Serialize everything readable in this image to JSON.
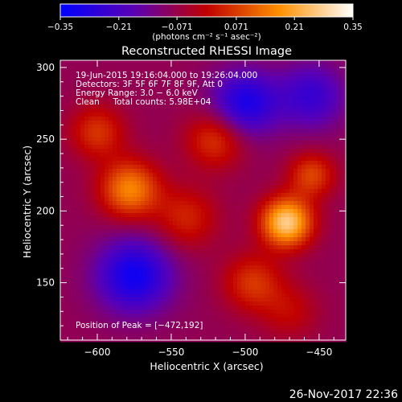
{
  "chart_data": {
    "type": "heatmap",
    "title": "Reconstructed RHESSI Image",
    "xlabel": "Heliocentric X (arcsec)",
    "ylabel": "Heliocentric Y (arcsec)",
    "x_range": [
      -625,
      -432
    ],
    "y_range": [
      110,
      305
    ],
    "x_ticks": [
      -600,
      -550,
      -500,
      -450
    ],
    "y_ticks": [
      150,
      200,
      250,
      300
    ],
    "x_tick_labels": [
      "−600",
      "−550",
      "−500",
      "−450"
    ],
    "y_tick_labels": [
      "150",
      "200",
      "250",
      "300"
    ],
    "colorbar": {
      "range": [
        -0.35,
        0.35
      ],
      "ticks": [
        -0.35,
        -0.21,
        -0.071,
        0.071,
        0.21,
        0.35
      ],
      "tick_labels": [
        "−0.35",
        "−0.21",
        "−0.071",
        "0.071",
        "0.21",
        "0.35"
      ],
      "unit_label": "(photons cm⁻² s⁻¹ asec⁻²)"
    },
    "annotations": [
      "19-Jun-2015 19:16:04.000 to 19:26:04.000",
      "Detectors: 3F 5F 6F 7F 8F 9F, Att 0",
      "Energy Range: 3.0 − 6.0 keV",
      "Clean     Total counts: 5.98E+04"
    ],
    "peak_label": "Position of Peak = [−472,192]",
    "peak": [
      -472,
      192
    ],
    "sources": [
      {
        "x": -472,
        "y": 192,
        "peak": 0.35,
        "sigma": 12
      },
      {
        "x": -578,
        "y": 215,
        "peak": 0.24,
        "sigma": 14
      },
      {
        "x": -520,
        "y": 250,
        "peak": 0.15,
        "sigma": 14
      },
      {
        "x": -455,
        "y": 225,
        "peak": 0.16,
        "sigma": 11
      },
      {
        "x": -540,
        "y": 195,
        "peak": 0.12,
        "sigma": 15
      },
      {
        "x": -495,
        "y": 150,
        "peak": 0.14,
        "sigma": 14
      },
      {
        "x": -600,
        "y": 255,
        "peak": 0.14,
        "sigma": 13
      },
      {
        "x": -470,
        "y": 130,
        "peak": 0.08,
        "sigma": 14
      },
      {
        "x": -500,
        "y": 275,
        "peak": -0.22,
        "sigma": 16
      },
      {
        "x": -575,
        "y": 155,
        "peak": -0.24,
        "sigma": 18
      },
      {
        "x": -455,
        "y": 280,
        "peak": -0.16,
        "sigma": 16
      }
    ]
  },
  "footer": {
    "date": "26-Nov-2017 22:36"
  }
}
